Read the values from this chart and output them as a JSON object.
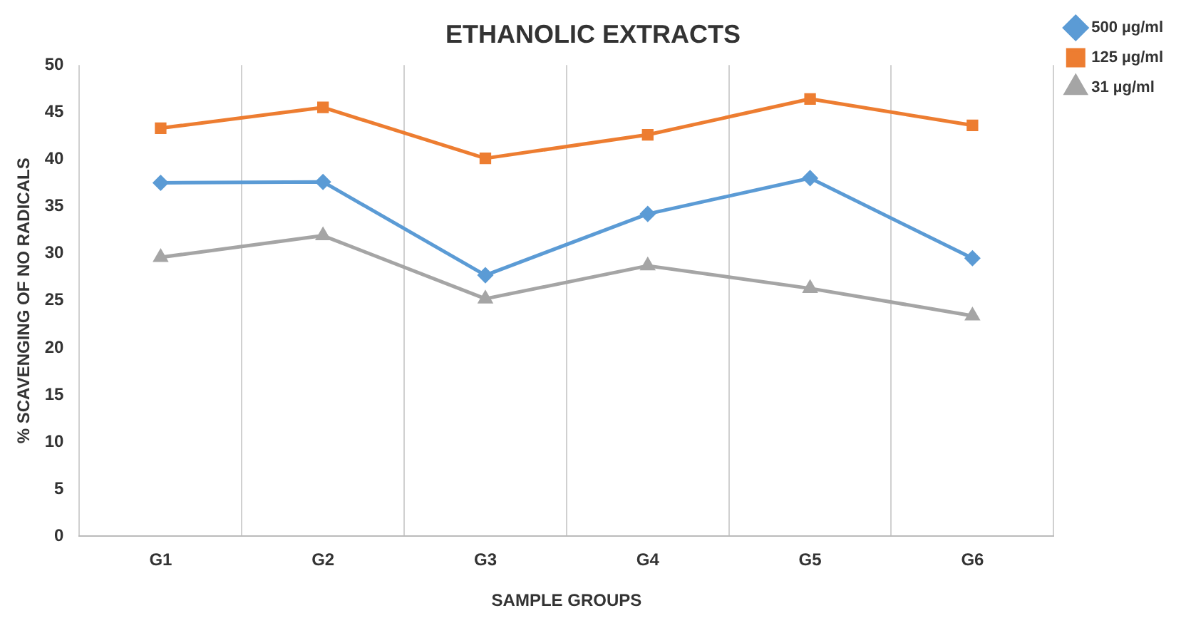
{
  "chart_data": {
    "type": "line",
    "title": "ETHANOLIC EXTRACTS",
    "xlabel": "SAMPLE GROUPS",
    "ylabel": "% SCAVENGING OF NO RADICALS",
    "categories": [
      "G1",
      "G2",
      "G3",
      "G4",
      "G5",
      "G6"
    ],
    "series": [
      {
        "name": "500 µg/ml",
        "color": "#5b9bd5",
        "marker": "diamond",
        "values": [
          37.5,
          37.6,
          27.7,
          34.2,
          38.0,
          29.5
        ]
      },
      {
        "name": "125 µg/ml",
        "color": "#ed7d31",
        "marker": "square",
        "values": [
          43.3,
          45.5,
          40.1,
          42.6,
          46.4,
          43.6
        ]
      },
      {
        "name": "31 µg/ml",
        "color": "#a5a5a5",
        "marker": "triangle",
        "values": [
          29.6,
          31.9,
          25.2,
          28.7,
          26.3,
          23.4
        ]
      }
    ],
    "ylim": [
      0,
      50
    ],
    "yticks": [
      0,
      5,
      10,
      15,
      20,
      25,
      30,
      35,
      40,
      45,
      50
    ],
    "grid": "x",
    "legend": "top right"
  }
}
